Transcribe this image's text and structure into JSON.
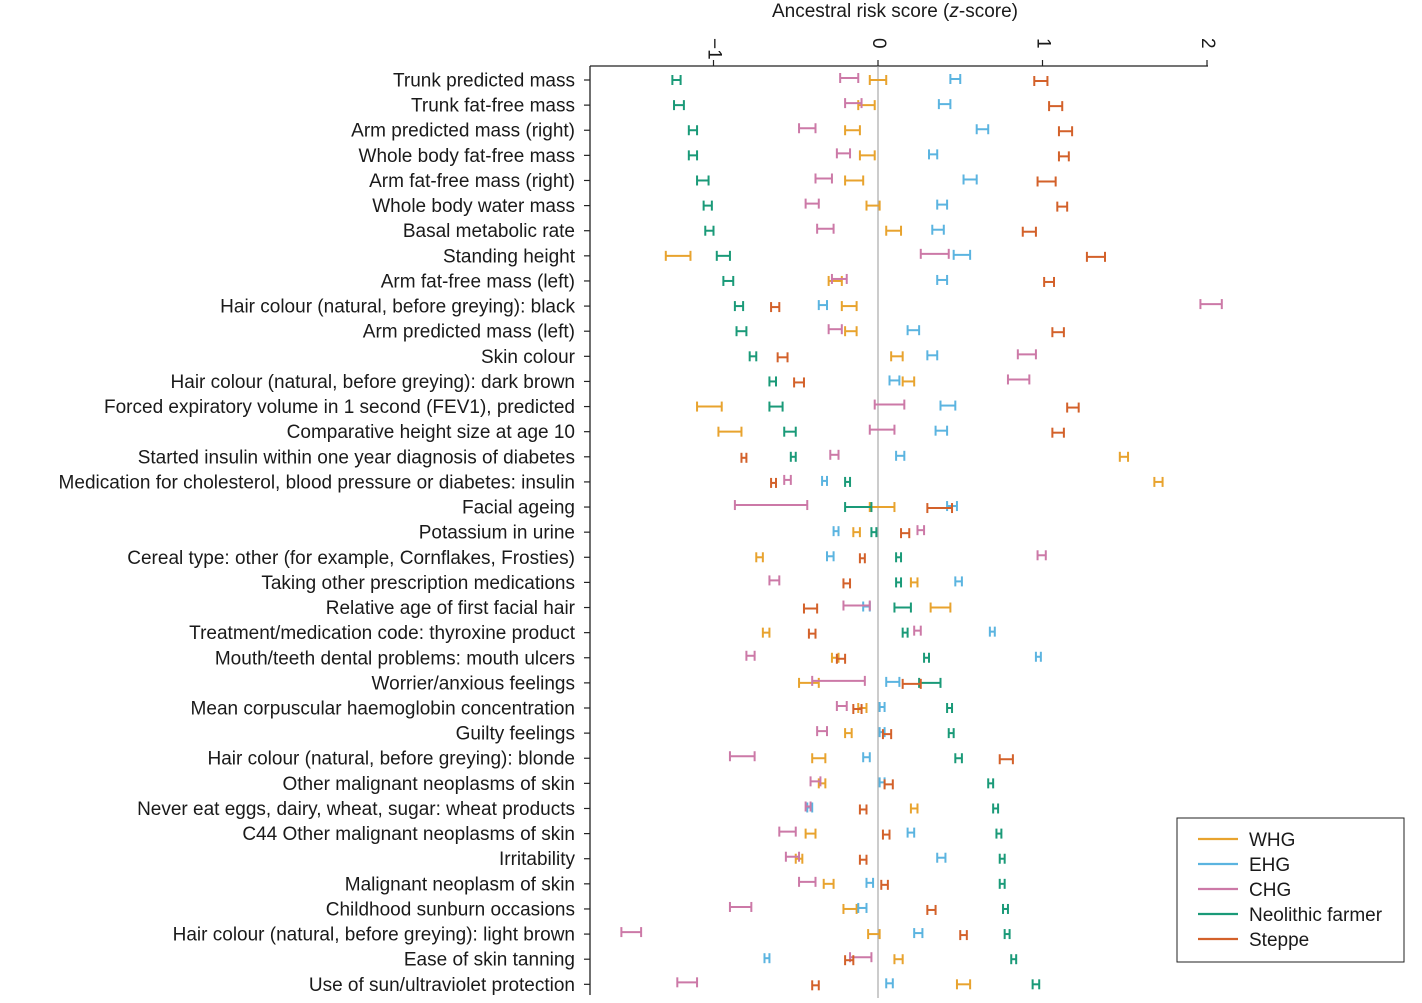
{
  "chart_data": {
    "type": "forest",
    "title": "",
    "xlabel_prefix": "Ancestral risk score (",
    "xlabel_italic": "z",
    "xlabel_suffix": "-score)",
    "xlim": [
      -1.75,
      2.0
    ],
    "xticks": [
      {
        "value": -1,
        "label": "−1"
      },
      {
        "value": 0,
        "label": "0"
      },
      {
        "value": 1,
        "label": "1"
      },
      {
        "value": 2,
        "label": "2"
      }
    ],
    "legend_position": "bottom-right",
    "series": [
      {
        "name": "WHG",
        "color": "#E8A32E"
      },
      {
        "name": "EHG",
        "color": "#5BB4E0"
      },
      {
        "name": "CHG",
        "color": "#CC79A7"
      },
      {
        "name": "Neolithic farmer",
        "color": "#1A9A78"
      },
      {
        "name": "Steppe",
        "color": "#D3612A"
      }
    ],
    "traits": [
      {
        "label": "Trunk predicted mass",
        "intervals": {
          "WHG": [
            -0.05,
            0.05
          ],
          "EHG": [
            0.44,
            0.5
          ],
          "CHG": [
            -0.23,
            -0.12
          ],
          "Neolithic farmer": [
            -1.25,
            -1.2
          ],
          "Steppe": [
            0.95,
            1.03
          ]
        }
      },
      {
        "label": "Trunk fat-free mass",
        "intervals": {
          "WHG": [
            -0.12,
            -0.02
          ],
          "EHG": [
            0.37,
            0.44
          ],
          "CHG": [
            -0.2,
            -0.1
          ],
          "Neolithic farmer": [
            -1.24,
            -1.18
          ],
          "Steppe": [
            1.04,
            1.12
          ]
        }
      },
      {
        "label": "Arm predicted mass (right)",
        "intervals": {
          "WHG": [
            -0.2,
            -0.11
          ],
          "EHG": [
            0.6,
            0.67
          ],
          "CHG": [
            -0.48,
            -0.38
          ],
          "Neolithic farmer": [
            -1.15,
            -1.1
          ],
          "Steppe": [
            1.1,
            1.18
          ]
        }
      },
      {
        "label": "Whole body fat-free mass",
        "intervals": {
          "WHG": [
            -0.11,
            -0.02
          ],
          "EHG": [
            0.31,
            0.36
          ],
          "CHG": [
            -0.25,
            -0.17
          ],
          "Neolithic farmer": [
            -1.15,
            -1.1
          ],
          "Steppe": [
            1.1,
            1.16
          ]
        }
      },
      {
        "label": "Arm fat-free mass (right)",
        "intervals": {
          "WHG": [
            -0.2,
            -0.09
          ],
          "EHG": [
            0.52,
            0.6
          ],
          "CHG": [
            -0.38,
            -0.28
          ],
          "Neolithic farmer": [
            -1.1,
            -1.03
          ],
          "Steppe": [
            0.97,
            1.08
          ]
        }
      },
      {
        "label": "Whole body water mass",
        "intervals": {
          "WHG": [
            -0.07,
            0.01
          ],
          "EHG": [
            0.36,
            0.42
          ],
          "CHG": [
            -0.44,
            -0.36
          ],
          "Neolithic farmer": [
            -1.06,
            -1.01
          ],
          "Steppe": [
            1.09,
            1.15
          ]
        }
      },
      {
        "label": "Basal metabolic rate",
        "intervals": {
          "WHG": [
            0.05,
            0.14
          ],
          "EHG": [
            0.33,
            0.4
          ],
          "CHG": [
            -0.37,
            -0.27
          ],
          "Neolithic farmer": [
            -1.05,
            -1.0
          ],
          "Steppe": [
            0.88,
            0.96
          ]
        }
      },
      {
        "label": "Standing height",
        "intervals": {
          "WHG": [
            -1.29,
            -1.14
          ],
          "EHG": [
            0.46,
            0.56
          ],
          "CHG": [
            0.26,
            0.43
          ],
          "Neolithic farmer": [
            -0.98,
            -0.9
          ],
          "Steppe": [
            1.27,
            1.38
          ]
        }
      },
      {
        "label": "Arm fat-free mass (left)",
        "intervals": {
          "WHG": [
            -0.3,
            -0.22
          ],
          "EHG": [
            0.36,
            0.42
          ],
          "CHG": [
            -0.28,
            -0.19
          ],
          "Neolithic farmer": [
            -0.94,
            -0.88
          ],
          "Steppe": [
            1.01,
            1.07
          ]
        }
      },
      {
        "label": "Hair colour (natural, before greying): black",
        "intervals": {
          "WHG": [
            -0.22,
            -0.13
          ],
          "EHG": [
            -0.36,
            -0.31
          ],
          "CHG": [
            1.96,
            2.09
          ],
          "Neolithic farmer": [
            -0.87,
            -0.82
          ],
          "Steppe": [
            -0.65,
            -0.6
          ]
        }
      },
      {
        "label": "Arm predicted mass (left)",
        "intervals": {
          "WHG": [
            -0.2,
            -0.13
          ],
          "EHG": [
            0.18,
            0.25
          ],
          "CHG": [
            -0.3,
            -0.22
          ],
          "Neolithic farmer": [
            -0.86,
            -0.8
          ],
          "Steppe": [
            1.06,
            1.13
          ]
        }
      },
      {
        "label": "Skin colour",
        "intervals": {
          "WHG": [
            0.08,
            0.15
          ],
          "EHG": [
            0.3,
            0.36
          ],
          "CHG": [
            0.85,
            0.96
          ],
          "Neolithic farmer": [
            -0.78,
            -0.74
          ],
          "Steppe": [
            -0.61,
            -0.55
          ]
        }
      },
      {
        "label": "Hair colour (natural, before greying): dark brown",
        "intervals": {
          "WHG": [
            0.15,
            0.22
          ],
          "EHG": [
            0.07,
            0.13
          ],
          "CHG": [
            0.79,
            0.92
          ],
          "Neolithic farmer": [
            -0.66,
            -0.62
          ],
          "Steppe": [
            -0.51,
            -0.45
          ]
        }
      },
      {
        "label": "Forced expiratory volume in 1 second (FEV1), predicted",
        "intervals": {
          "WHG": [
            -1.1,
            -0.95
          ],
          "EHG": [
            0.38,
            0.47
          ],
          "CHG": [
            -0.02,
            0.16
          ],
          "Neolithic farmer": [
            -0.66,
            -0.58
          ],
          "Steppe": [
            1.15,
            1.22
          ]
        }
      },
      {
        "label": "Comparative height size at age 10",
        "intervals": {
          "WHG": [
            -0.97,
            -0.83
          ],
          "EHG": [
            0.35,
            0.42
          ],
          "CHG": [
            -0.05,
            0.1
          ],
          "Neolithic farmer": [
            -0.57,
            -0.5
          ],
          "Steppe": [
            1.06,
            1.13
          ]
        }
      },
      {
        "label": "Started insulin within one year diagnosis of diabetes",
        "intervals": {
          "WHG": [
            1.47,
            1.52
          ],
          "EHG": [
            0.11,
            0.16
          ],
          "CHG": [
            -0.29,
            -0.24
          ],
          "Neolithic farmer": [
            -0.53,
            -0.5
          ],
          "Steppe": [
            -0.83,
            -0.8
          ]
        }
      },
      {
        "label": "Medication for cholesterol, blood pressure or diabetes: insulin",
        "intervals": {
          "WHG": [
            1.68,
            1.73
          ],
          "EHG": [
            -0.34,
            -0.31
          ],
          "CHG": [
            -0.57,
            -0.53
          ],
          "Neolithic farmer": [
            -0.2,
            -0.17
          ],
          "Steppe": [
            -0.65,
            -0.62
          ]
        }
      },
      {
        "label": "Facial ageing",
        "intervals": {
          "WHG": [
            -0.05,
            0.1
          ],
          "EHG": [
            0.42,
            0.48
          ],
          "CHG": [
            -0.87,
            -0.43
          ],
          "Neolithic farmer": [
            -0.2,
            -0.04
          ],
          "Steppe": [
            0.3,
            0.45
          ]
        }
      },
      {
        "label": "Potassium in urine",
        "intervals": {
          "WHG": [
            -0.15,
            -0.11
          ],
          "EHG": [
            -0.27,
            -0.24
          ],
          "CHG": [
            0.24,
            0.28
          ],
          "Neolithic farmer": [
            -0.04,
            -0.01
          ],
          "Steppe": [
            0.14,
            0.19
          ]
        }
      },
      {
        "label": "Cereal type: other (for example, Cornflakes, Frosties)",
        "intervals": {
          "WHG": [
            -0.74,
            -0.7
          ],
          "EHG": [
            -0.31,
            -0.27
          ],
          "CHG": [
            0.97,
            1.02
          ],
          "Neolithic farmer": [
            0.11,
            0.14
          ],
          "Steppe": [
            -0.11,
            -0.08
          ]
        }
      },
      {
        "label": "Taking other prescription medications",
        "intervals": {
          "WHG": [
            0.2,
            0.24
          ],
          "EHG": [
            0.47,
            0.51
          ],
          "CHG": [
            -0.66,
            -0.6
          ],
          "Neolithic farmer": [
            0.11,
            0.14
          ],
          "Steppe": [
            -0.21,
            -0.17
          ]
        }
      },
      {
        "label": "Relative age of first facial hair",
        "intervals": {
          "WHG": [
            0.32,
            0.44
          ],
          "EHG": [
            -0.09,
            -0.05
          ],
          "CHG": [
            -0.21,
            -0.05
          ],
          "Neolithic farmer": [
            0.1,
            0.2
          ],
          "Steppe": [
            -0.45,
            -0.37
          ]
        }
      },
      {
        "label": "Treatment/medication code: thyroxine product",
        "intervals": {
          "WHG": [
            -0.7,
            -0.66
          ],
          "EHG": [
            0.68,
            0.71
          ],
          "CHG": [
            0.22,
            0.26
          ],
          "Neolithic farmer": [
            0.15,
            0.18
          ],
          "Steppe": [
            -0.42,
            -0.38
          ]
        }
      },
      {
        "label": "Mouth/teeth dental problems: mouth ulcers",
        "intervals": {
          "WHG": [
            -0.28,
            -0.24
          ],
          "EHG": [
            0.96,
            0.99
          ],
          "CHG": [
            -0.8,
            -0.75
          ],
          "Neolithic farmer": [
            0.28,
            0.31
          ],
          "Steppe": [
            -0.25,
            -0.2
          ]
        }
      },
      {
        "label": "Worrier/anxious feelings",
        "intervals": {
          "WHG": [
            -0.48,
            -0.36
          ],
          "EHG": [
            0.05,
            0.13
          ],
          "CHG": [
            -0.4,
            -0.08
          ],
          "Neolithic farmer": [
            0.25,
            0.38
          ],
          "Steppe": [
            0.15,
            0.26
          ]
        }
      },
      {
        "label": "Mean corpuscular haemoglobin concentration",
        "intervals": {
          "WHG": [
            -0.12,
            -0.07
          ],
          "EHG": [
            0.01,
            0.04
          ],
          "CHG": [
            -0.25,
            -0.19
          ],
          "Neolithic farmer": [
            0.42,
            0.45
          ],
          "Steppe": [
            -0.15,
            -0.1
          ]
        }
      },
      {
        "label": "Guilty feelings",
        "intervals": {
          "WHG": [
            -0.2,
            -0.16
          ],
          "EHG": [
            0.01,
            0.04
          ],
          "CHG": [
            -0.37,
            -0.31
          ],
          "Neolithic farmer": [
            0.43,
            0.46
          ],
          "Steppe": [
            0.03,
            0.08
          ]
        }
      },
      {
        "label": "Hair colour (natural, before greying): blonde",
        "intervals": {
          "WHG": [
            -0.4,
            -0.32
          ],
          "EHG": [
            -0.09,
            -0.05
          ],
          "CHG": [
            -0.9,
            -0.75
          ],
          "Neolithic farmer": [
            0.47,
            0.51
          ],
          "Steppe": [
            0.74,
            0.82
          ]
        }
      },
      {
        "label": "Other malignant neoplasms of skin",
        "intervals": {
          "WHG": [
            -0.36,
            -0.32
          ],
          "EHG": [
            0.01,
            0.04
          ],
          "CHG": [
            -0.41,
            -0.35
          ],
          "Neolithic farmer": [
            0.67,
            0.7
          ],
          "Steppe": [
            0.04,
            0.09
          ]
        }
      },
      {
        "label": "Never eat eggs, dairy, wheat, sugar: wheat products",
        "intervals": {
          "WHG": [
            0.2,
            0.24
          ],
          "EHG": [
            -0.43,
            -0.4
          ],
          "CHG": [
            -0.44,
            -0.41
          ],
          "Neolithic farmer": [
            0.7,
            0.73
          ],
          "Steppe": [
            -0.11,
            -0.07
          ]
        }
      },
      {
        "label": "C44 Other malignant neoplasms of skin",
        "intervals": {
          "WHG": [
            -0.44,
            -0.38
          ],
          "EHG": [
            0.18,
            0.22
          ],
          "CHG": [
            -0.6,
            -0.5
          ],
          "Neolithic farmer": [
            0.72,
            0.75
          ],
          "Steppe": [
            0.03,
            0.07
          ]
        }
      },
      {
        "label": "Irritability",
        "intervals": {
          "WHG": [
            -0.5,
            -0.46
          ],
          "EHG": [
            0.36,
            0.41
          ],
          "CHG": [
            -0.56,
            -0.48
          ],
          "Neolithic farmer": [
            0.74,
            0.77
          ],
          "Steppe": [
            -0.11,
            -0.07
          ]
        }
      },
      {
        "label": "Malignant neoplasm of skin",
        "intervals": {
          "WHG": [
            -0.33,
            -0.27
          ],
          "EHG": [
            -0.07,
            -0.03
          ],
          "CHG": [
            -0.48,
            -0.38
          ],
          "Neolithic farmer": [
            0.74,
            0.77
          ],
          "Steppe": [
            0.02,
            0.06
          ]
        }
      },
      {
        "label": "Childhood sunburn occasions",
        "intervals": {
          "WHG": [
            -0.21,
            -0.13
          ],
          "EHG": [
            -0.12,
            -0.07
          ],
          "CHG": [
            -0.9,
            -0.77
          ],
          "Neolithic farmer": [
            0.76,
            0.79
          ],
          "Steppe": [
            0.3,
            0.35
          ]
        }
      },
      {
        "label": "Hair colour (natural, before greying): light brown",
        "intervals": {
          "WHG": [
            -0.06,
            0.01
          ],
          "EHG": [
            0.22,
            0.27
          ],
          "CHG": [
            -1.56,
            -1.44
          ],
          "Neolithic farmer": [
            0.77,
            0.8
          ],
          "Steppe": [
            0.5,
            0.54
          ]
        }
      },
      {
        "label": "Ease of skin tanning",
        "intervals": {
          "WHG": [
            0.1,
            0.15
          ],
          "EHG": [
            -0.69,
            -0.66
          ],
          "CHG": [
            -0.17,
            -0.04
          ],
          "Neolithic farmer": [
            0.81,
            0.84
          ],
          "Steppe": [
            -0.2,
            -0.15
          ]
        }
      },
      {
        "label": "Use of sun/ultraviolet protection",
        "intervals": {
          "WHG": [
            0.48,
            0.56
          ],
          "EHG": [
            0.05,
            0.09
          ],
          "CHG": [
            -1.22,
            -1.1
          ],
          "Neolithic farmer": [
            0.94,
            0.98
          ],
          "Steppe": [
            -0.4,
            -0.36
          ]
        }
      }
    ]
  }
}
